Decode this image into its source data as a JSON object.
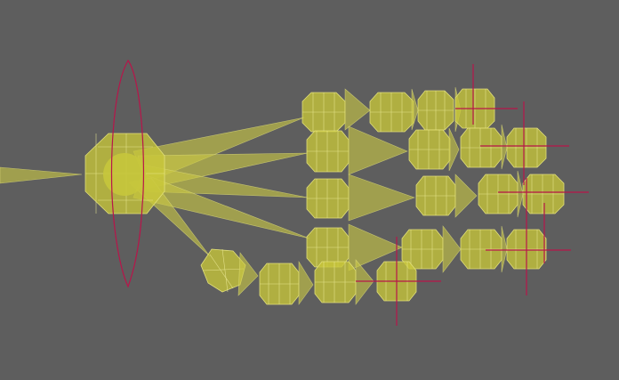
{
  "viewport": {
    "background": "#5e5e5e",
    "bone_color": "#c8c63a",
    "helper_color": "#b8154a",
    "object": "hand-bone-rig"
  }
}
